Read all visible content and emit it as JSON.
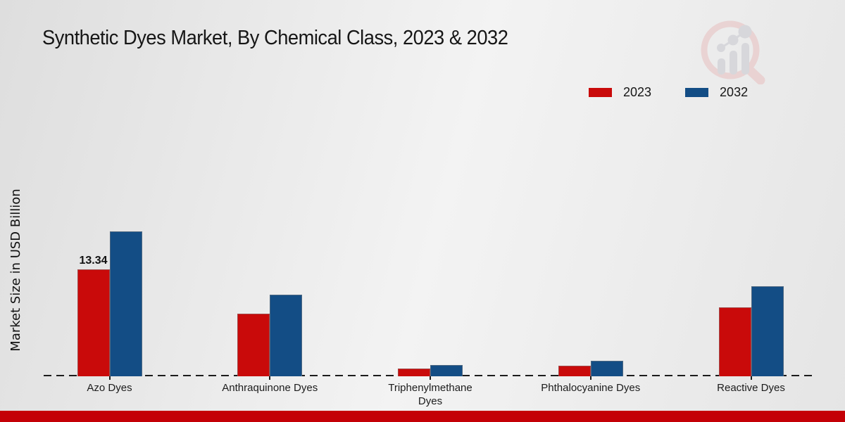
{
  "header": {
    "title": "Synthetic Dyes Market, By Chemical Class, 2023 & 2032"
  },
  "colors": {
    "series_2023": "#c90a0a",
    "series_2032": "#134d85",
    "footer_accent": "#c40006",
    "axis": "#1c1c1c"
  },
  "chart_data": {
    "type": "bar",
    "title": "Synthetic Dyes Market, By Chemical Class, 2023 & 2032",
    "xlabel": "",
    "ylabel": "Market Size in USD Billion",
    "ylim": [
      0,
      20
    ],
    "grid": false,
    "legend_position": "top-right",
    "categories": [
      "Azo Dyes",
      "Anthraquinone Dyes",
      "Triphenylmethane Dyes",
      "Phthalocyanine Dyes",
      "Reactive Dyes"
    ],
    "series": [
      {
        "name": "2023",
        "color": "#c90a0a",
        "values": [
          13.34,
          7.8,
          1.0,
          1.3,
          8.6
        ],
        "value_labels": [
          "13.34",
          null,
          null,
          null,
          null
        ]
      },
      {
        "name": "2032",
        "color": "#134d85",
        "values": [
          18.1,
          10.2,
          1.4,
          1.9,
          11.2
        ],
        "value_labels": [
          null,
          null,
          null,
          null,
          null
        ]
      }
    ],
    "baseline_style": "dashed"
  }
}
